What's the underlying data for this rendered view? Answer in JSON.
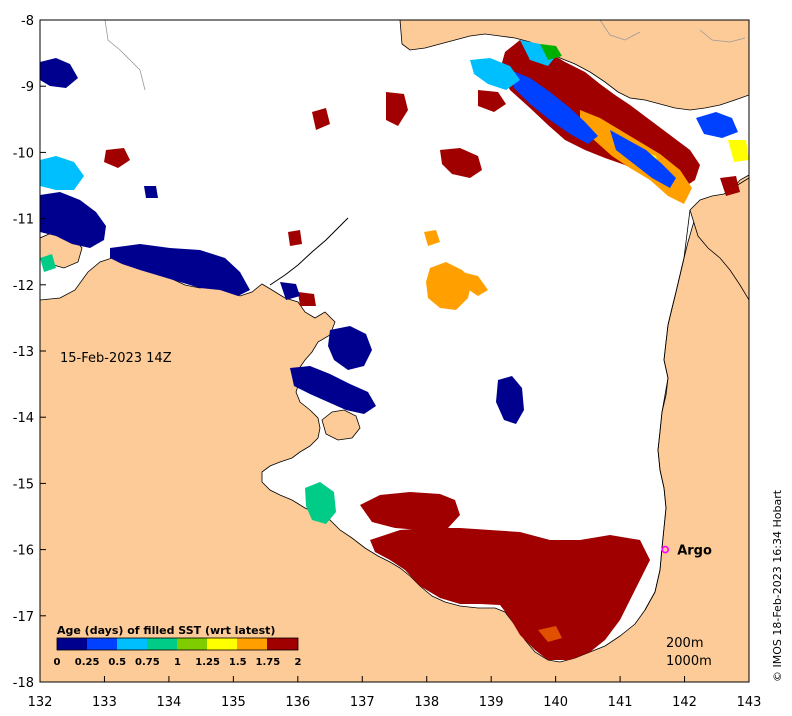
{
  "map": {
    "date_label": "15-Feb-2023 14Z",
    "x_ticks": [
      "132",
      "133",
      "134",
      "135",
      "136",
      "137",
      "138",
      "139",
      "140",
      "141",
      "142",
      "143"
    ],
    "y_ticks": [
      "-8",
      "-9",
      "-10",
      "-11",
      "-12",
      "-13",
      "-14",
      "-15",
      "-16",
      "-17",
      "-18"
    ],
    "x_range": [
      132,
      143
    ],
    "y_range": [
      -18,
      -8
    ],
    "colors": {
      "land": "#fdcb98",
      "ocean": "#ffffff",
      "age_0": "#00008f",
      "age_025": "#0040ff",
      "age_05": "#00bfff",
      "age_075": "#00cc88",
      "age_1": "#00b000",
      "age_125": "#ffff00",
      "age_15": "#ffa000",
      "age_175": "#e05000",
      "age_2": "#a00000",
      "argo_marker": "#ff00ff"
    }
  },
  "colorbar": {
    "title": "Age (days) of filled SST (wrt latest)",
    "ticks": [
      "0",
      "0.25",
      "0.5",
      "0.75",
      "1",
      "1.25",
      "1.5",
      "1.75",
      "2"
    ]
  },
  "argo": {
    "label": "Argo",
    "lon": 141.7,
    "lat": -16.0
  },
  "contours": {
    "label_200": "200m",
    "label_1000": "1000m"
  },
  "credit": "© IMOS 18-Feb-2023 16:34 Hobart"
}
